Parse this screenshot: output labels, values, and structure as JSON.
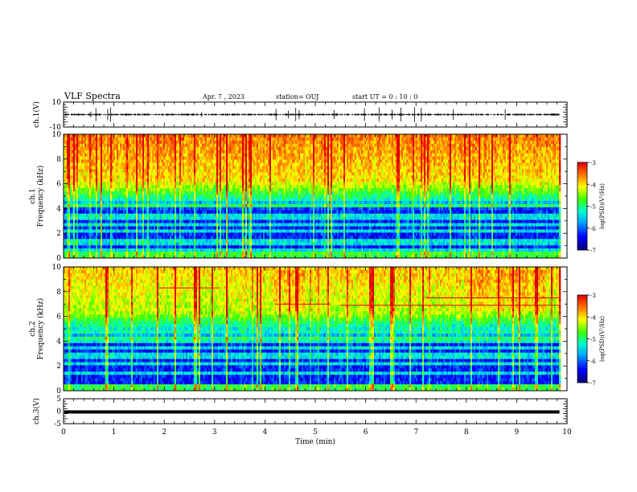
{
  "header": {
    "title": "VLF Spectra",
    "date": "Apr. 7 , 2023",
    "station": "station= OUJ",
    "start": "start  UT  =   0  : 10 : 0"
  },
  "chart_data": [
    {
      "type": "line",
      "panel": "ch1-waveform",
      "ylabel": "ch.1(V)",
      "ylim": [
        -10,
        10
      ],
      "yticks": [
        "10",
        "-10"
      ],
      "baseline": 0,
      "xlim": [
        0,
        10
      ]
    },
    {
      "type": "heatmap",
      "panel": "ch1-spectrogram",
      "ylabel": "ch.1\nFrequency (kHz)",
      "ylim": [
        0,
        10
      ],
      "yticks": [
        "0",
        "2",
        "4",
        "6",
        "8",
        "10"
      ],
      "xlim": [
        0,
        10
      ],
      "data_end_min": 9.85,
      "colorbar": {
        "label": "log(PSD)(V²/Hz)",
        "range": [
          -7,
          -3
        ],
        "ticks": [
          "-3",
          "-4",
          "-5",
          "-6",
          "-7"
        ]
      }
    },
    {
      "type": "heatmap",
      "panel": "ch2-spectrogram",
      "ylabel": "ch.2\nFrequency (kHz)",
      "ylim": [
        0,
        10
      ],
      "yticks": [
        "0",
        "2",
        "4",
        "6",
        "8",
        "10"
      ],
      "xlim": [
        0,
        10
      ],
      "data_end_min": 9.85,
      "colorbar": {
        "label": "log(PSD)(V²/Hz)",
        "range": [
          -7,
          -3
        ],
        "ticks": [
          "-3",
          "-4",
          "-5",
          "-6",
          "-7"
        ]
      }
    },
    {
      "type": "line",
      "panel": "ch3-waveform",
      "ylabel": "ch.3(V)",
      "ylim": [
        -5,
        5
      ],
      "yticks": [
        "5",
        "0",
        "-5"
      ],
      "baseline": -0.3,
      "xlim": [
        0,
        10
      ]
    }
  ],
  "x_axis": {
    "label": "Time  (min)",
    "ticks": [
      "0",
      "1",
      "2",
      "3",
      "4",
      "5",
      "6",
      "7",
      "8",
      "9",
      "10"
    ]
  }
}
